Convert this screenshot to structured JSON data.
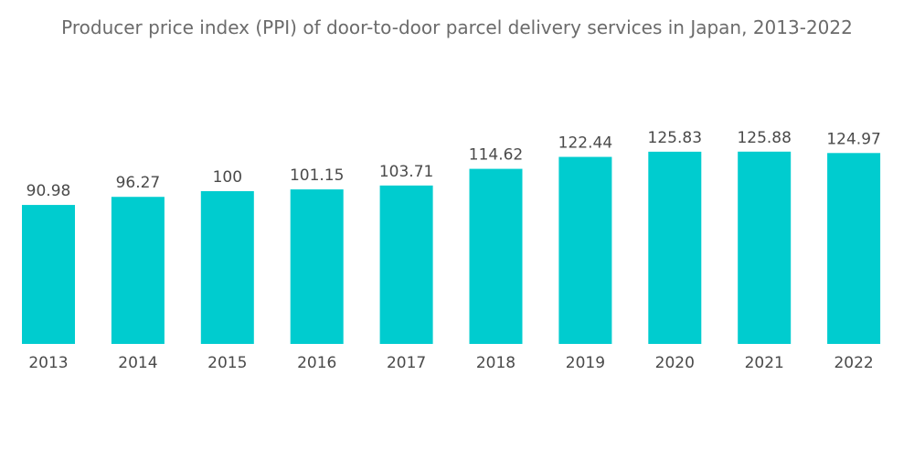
{
  "chart_data": {
    "type": "bar",
    "title": "Producer price index (PPI) of door-to-door parcel delivery services in Japan, 2013-2022",
    "categories": [
      "2013",
      "2014",
      "2015",
      "2016",
      "2017",
      "2018",
      "2019",
      "2020",
      "2021",
      "2022"
    ],
    "values": [
      90.98,
      96.27,
      100,
      101.15,
      103.71,
      114.62,
      122.44,
      125.83,
      125.88,
      124.97
    ],
    "value_labels": [
      "90.98",
      "96.27",
      "100",
      "101.15",
      "103.71",
      "114.62",
      "122.44",
      "125.83",
      "125.88",
      "124.97"
    ],
    "xlabel": "",
    "ylabel": "",
    "ylim": [
      0,
      135
    ],
    "grid": false,
    "legend": "none",
    "bar_color": "#00cccf"
  }
}
